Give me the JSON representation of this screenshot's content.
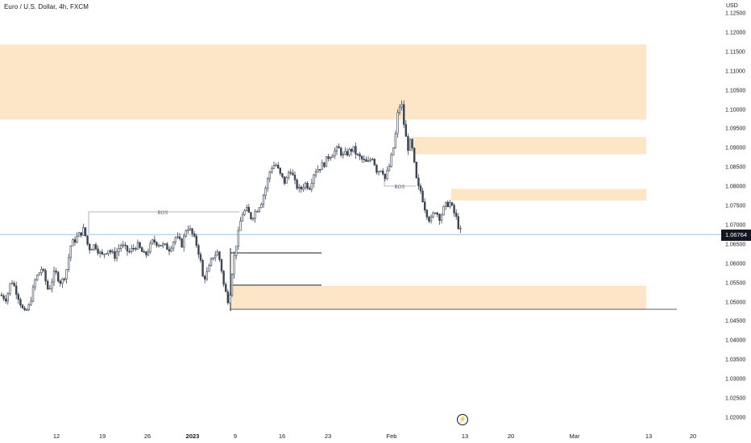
{
  "header": {
    "title": "Euro / U.S. Dollar, 4h, FXCM",
    "currency": "USD"
  },
  "price_axis": {
    "labels": [
      "1.12500",
      "1.12000",
      "1.11500",
      "1.11000",
      "1.10500",
      "1.10000",
      "1.09500",
      "1.09000",
      "1.08500",
      "1.08000",
      "1.07500",
      "1.07000",
      "1.06500",
      "1.06000",
      "1.05500",
      "1.05000",
      "1.04500",
      "1.04000",
      "1.03500",
      "1.03000",
      "1.02500",
      "1.02000"
    ],
    "current_price": "1.06764"
  },
  "time_axis": {
    "labels": [
      "12",
      "19",
      "26",
      "2023",
      "9",
      "16",
      "23",
      "Feb",
      "13",
      "20",
      "Mar",
      "13",
      "20"
    ]
  },
  "annotations": {
    "bos_left": "BOS",
    "bos_right": "BOS"
  },
  "colors": {
    "zone": "#fde5c7",
    "candle": "#3a4454",
    "current_price_line": "#9fc3de",
    "line": "#131722"
  },
  "icons": {
    "replay": "lightning-icon"
  },
  "chart_data": {
    "type": "candlestick",
    "symbol": "EURUSD",
    "timeframe": "4h",
    "ylim": [
      1.0175,
      1.1275
    ],
    "current_price": 1.06764,
    "zones": [
      {
        "name": "supply-top",
        "from": 1.0975,
        "to": 1.117
      },
      {
        "name": "supply-mid",
        "from": 1.0885,
        "to": 1.093
      },
      {
        "name": "supply-low",
        "from": 1.0765,
        "to": 1.0795
      },
      {
        "name": "demand",
        "from": 1.0482,
        "to": 1.0543
      }
    ],
    "path": [
      [
        0,
        1.052
      ],
      [
        8,
        1.051
      ],
      [
        14,
        1.056
      ],
      [
        22,
        1.052
      ],
      [
        30,
        1.047
      ],
      [
        36,
        1.049
      ],
      [
        44,
        1.056
      ],
      [
        52,
        1.059
      ],
      [
        60,
        1.053
      ],
      [
        68,
        1.058
      ],
      [
        76,
        1.055
      ],
      [
        82,
        1.058
      ],
      [
        88,
        1.065
      ],
      [
        96,
        1.067
      ],
      [
        104,
        1.069
      ],
      [
        110,
        1.064
      ],
      [
        118,
        1.065
      ],
      [
        126,
        1.062
      ],
      [
        134,
        1.064
      ],
      [
        142,
        1.062
      ],
      [
        150,
        1.065
      ],
      [
        160,
        1.063
      ],
      [
        170,
        1.065
      ],
      [
        180,
        1.062
      ],
      [
        190,
        1.066
      ],
      [
        200,
        1.065
      ],
      [
        210,
        1.064
      ],
      [
        218,
        1.067
      ],
      [
        226,
        1.065
      ],
      [
        232,
        1.07
      ],
      [
        238,
        1.068
      ],
      [
        244,
        1.065
      ],
      [
        248,
        1.062
      ],
      [
        252,
        1.056
      ],
      [
        258,
        1.058
      ],
      [
        264,
        1.062
      ],
      [
        270,
        1.063
      ],
      [
        274,
        1.06
      ],
      [
        278,
        1.054
      ],
      [
        284,
        1.05
      ],
      [
        288,
        1.058
      ],
      [
        292,
        1.064
      ],
      [
        296,
        1.068
      ],
      [
        300,
        1.073
      ],
      [
        306,
        1.074
      ],
      [
        312,
        1.072
      ],
      [
        318,
        1.074
      ],
      [
        324,
        1.076
      ],
      [
        330,
        1.08
      ],
      [
        336,
        1.085
      ],
      [
        342,
        1.086
      ],
      [
        348,
        1.083
      ],
      [
        354,
        1.081
      ],
      [
        360,
        1.085
      ],
      [
        366,
        1.081
      ],
      [
        372,
        1.079
      ],
      [
        378,
        1.081
      ],
      [
        384,
        1.08
      ],
      [
        390,
        1.084
      ],
      [
        396,
        1.085
      ],
      [
        402,
        1.086
      ],
      [
        408,
        1.088
      ],
      [
        414,
        1.089
      ],
      [
        420,
        1.09
      ],
      [
        426,
        1.088
      ],
      [
        432,
        1.089
      ],
      [
        438,
        1.09
      ],
      [
        444,
        1.088
      ],
      [
        450,
        1.087
      ],
      [
        456,
        1.086
      ],
      [
        462,
        1.088
      ],
      [
        468,
        1.084
      ],
      [
        474,
        1.085
      ],
      [
        478,
        1.082
      ],
      [
        484,
        1.086
      ],
      [
        490,
        1.092
      ],
      [
        494,
        1.1
      ],
      [
        498,
        1.102
      ],
      [
        502,
        1.095
      ],
      [
        506,
        1.09
      ],
      [
        510,
        1.092
      ],
      [
        514,
        1.086
      ],
      [
        518,
        1.08
      ],
      [
        522,
        1.079
      ],
      [
        528,
        1.074
      ],
      [
        534,
        1.071
      ],
      [
        540,
        1.074
      ],
      [
        546,
        1.072
      ],
      [
        552,
        1.075
      ],
      [
        558,
        1.076
      ],
      [
        562,
        1.074
      ],
      [
        566,
        1.072
      ],
      [
        570,
        1.069
      ],
      [
        574,
        1.06764
      ]
    ]
  }
}
